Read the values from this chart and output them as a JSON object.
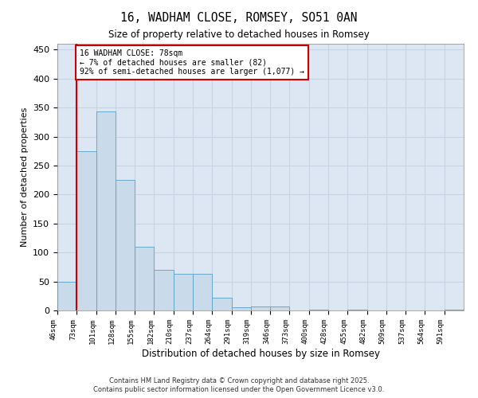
{
  "title": "16, WADHAM CLOSE, ROMSEY, SO51 0AN",
  "subtitle": "Size of property relative to detached houses in Romsey",
  "xlabel": "Distribution of detached houses by size in Romsey",
  "ylabel": "Number of detached properties",
  "footer_line1": "Contains HM Land Registry data © Crown copyright and database right 2025.",
  "footer_line2": "Contains public sector information licensed under the Open Government Licence v3.0.",
  "annotation_title": "16 WADHAM CLOSE: 78sqm",
  "annotation_line1": "← 7% of detached houses are smaller (82)",
  "annotation_line2": "92% of semi-detached houses are larger (1,077) →",
  "categories": [
    "46sqm",
    "73sqm",
    "101sqm",
    "128sqm",
    "155sqm",
    "182sqm",
    "210sqm",
    "237sqm",
    "264sqm",
    "291sqm",
    "319sqm",
    "346sqm",
    "373sqm",
    "400sqm",
    "428sqm",
    "455sqm",
    "482sqm",
    "509sqm",
    "537sqm",
    "564sqm",
    "591sqm"
  ],
  "values": [
    50,
    275,
    343,
    225,
    110,
    70,
    63,
    63,
    22,
    5,
    7,
    7,
    0,
    1,
    0,
    1,
    0,
    0,
    0,
    0,
    2
  ],
  "vline_bar_index": 1,
  "bar_color": "#c9daea",
  "bar_edge_color": "#5a9fc8",
  "grid_color": "#c8d4e4",
  "background_color": "#dce7f3",
  "vline_color": "#cc0000",
  "annotation_box_color": "#cc0000",
  "ylim": [
    0,
    460
  ],
  "yticks": [
    0,
    50,
    100,
    150,
    200,
    250,
    300,
    350,
    400,
    450
  ]
}
